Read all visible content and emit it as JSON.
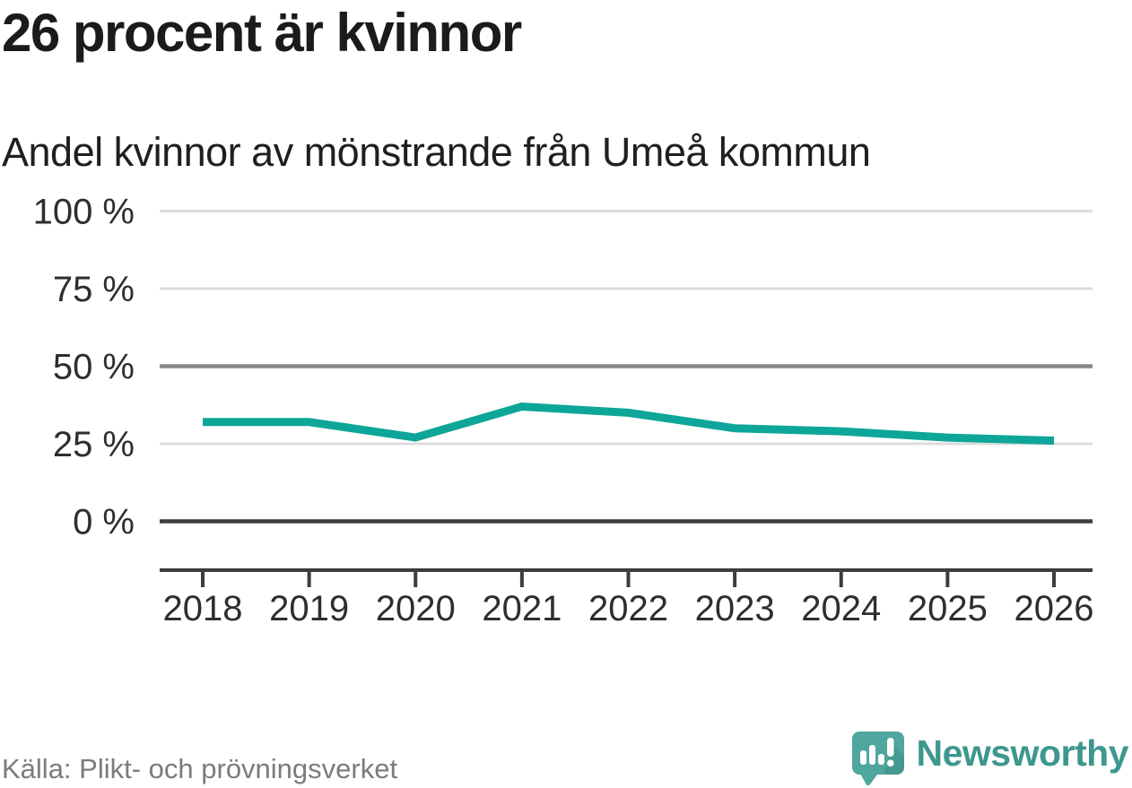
{
  "header": {
    "title": "26 procent är kvinnor",
    "subtitle": "Andel kvinnor av mönstrande från Umeå kommun"
  },
  "footer": {
    "source": "Källa: Plikt- och prövningsverket",
    "brand_name": "Newsworthy"
  },
  "colors": {
    "line": "#0da698",
    "gridline_light": "#dcdcde",
    "gridline_mid": "#87878c",
    "gridline_zero": "#3d3d40",
    "axis": "#3d3d40",
    "tick_label": "#2e2e2e",
    "brand_teal": "#3d978e",
    "logo_bubble": "#4ea69e",
    "logo_bubble_shade": "#449a92"
  },
  "chart_data": {
    "type": "line",
    "title": "26 procent är kvinnor",
    "subtitle": "Andel kvinnor av mönstrande från Umeå kommun",
    "x": [
      2018,
      2019,
      2020,
      2021,
      2022,
      2023,
      2024,
      2025,
      2026
    ],
    "series": [
      {
        "name": "Andel kvinnor av mönstrande",
        "values": [
          32,
          32,
          27,
          37,
          35,
          30,
          29,
          27,
          26
        ],
        "unit": "%"
      }
    ],
    "xlabel": "",
    "ylabel": "",
    "ylim": [
      0,
      100
    ],
    "yticks": [
      {
        "value": 100,
        "label": "100 %",
        "style": "light"
      },
      {
        "value": 75,
        "label": "75 %",
        "style": "light"
      },
      {
        "value": 50,
        "label": "50 %",
        "style": "mid"
      },
      {
        "value": 25,
        "label": "25 %",
        "style": "light"
      },
      {
        "value": 0,
        "label": "0 %",
        "style": "zero"
      }
    ],
    "xticks": [
      "2018",
      "2019",
      "2020",
      "2021",
      "2022",
      "2023",
      "2024",
      "2025",
      "2026"
    ],
    "grid": "horizontal-only",
    "legend": "none"
  }
}
